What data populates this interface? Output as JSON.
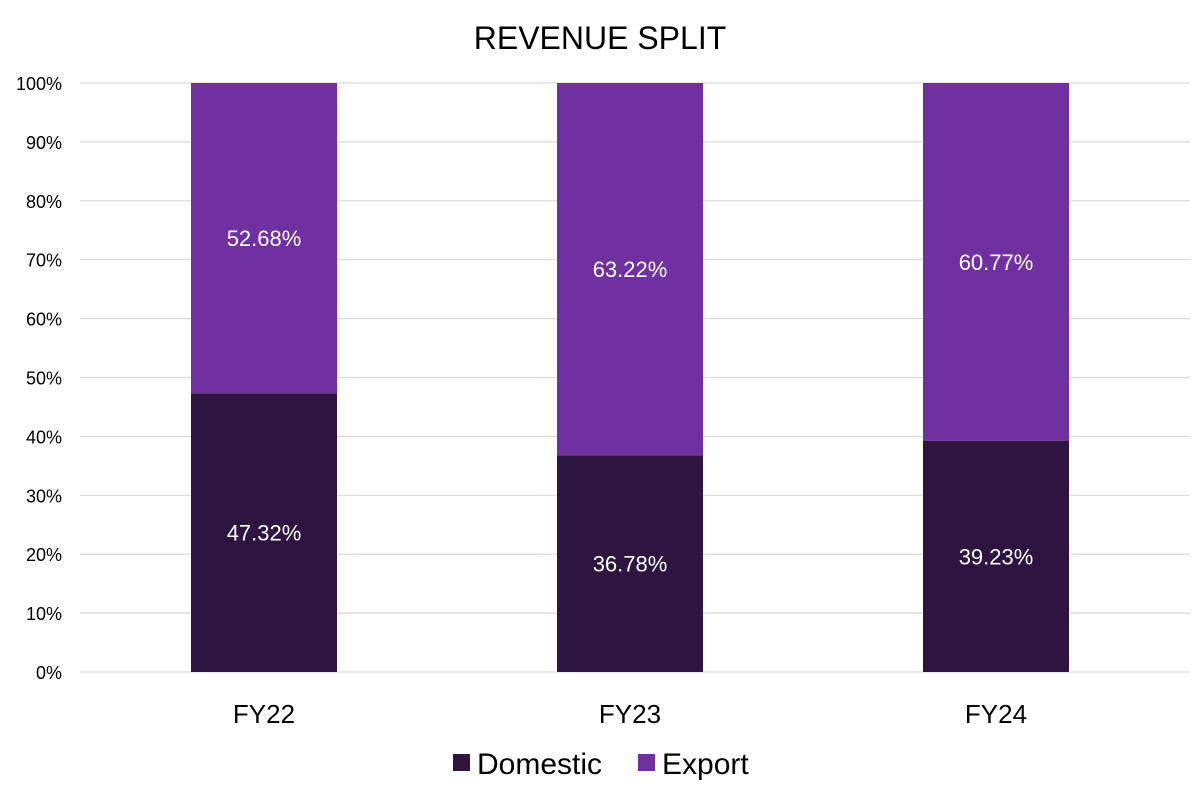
{
  "chart_data": {
    "type": "bar",
    "stacked": true,
    "title": "REVENUE SPLIT",
    "categories": [
      "FY22",
      "FY23",
      "FY24"
    ],
    "series": [
      {
        "name": "Domestic",
        "color": "#2e1440",
        "values": [
          47.32,
          36.78,
          39.23
        ],
        "labels": [
          "47.32%",
          "36.78%",
          "39.23%"
        ]
      },
      {
        "name": "Export",
        "color": "#7030a0",
        "values": [
          52.68,
          63.22,
          60.77
        ],
        "labels": [
          "52.68%",
          "63.22%",
          "60.77%"
        ]
      }
    ],
    "ylim": [
      0,
      100
    ],
    "yticks": [
      0,
      10,
      20,
      30,
      40,
      50,
      60,
      70,
      80,
      90,
      100
    ],
    "ytick_labels": [
      "0%",
      "10%",
      "20%",
      "30%",
      "40%",
      "50%",
      "60%",
      "70%",
      "80%",
      "90%",
      "100%"
    ],
    "xlabel": "",
    "ylabel": "",
    "grid": true,
    "legend_position": "bottom-center"
  }
}
